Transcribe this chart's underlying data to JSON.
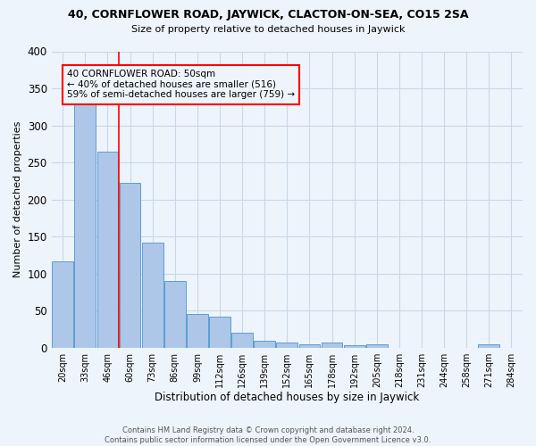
{
  "title": "40, CORNFLOWER ROAD, JAYWICK, CLACTON-ON-SEA, CO15 2SA",
  "subtitle": "Size of property relative to detached houses in Jaywick",
  "xlabel": "Distribution of detached houses by size in Jaywick",
  "ylabel": "Number of detached properties",
  "footer_line1": "Contains HM Land Registry data © Crown copyright and database right 2024.",
  "footer_line2": "Contains public sector information licensed under the Open Government Licence v3.0.",
  "bar_labels": [
    "20sqm",
    "33sqm",
    "46sqm",
    "60sqm",
    "73sqm",
    "86sqm",
    "99sqm",
    "112sqm",
    "126sqm",
    "139sqm",
    "152sqm",
    "165sqm",
    "178sqm",
    "192sqm",
    "205sqm",
    "218sqm",
    "231sqm",
    "244sqm",
    "258sqm",
    "271sqm",
    "284sqm"
  ],
  "bar_values": [
    116,
    333,
    265,
    222,
    142,
    90,
    45,
    42,
    20,
    9,
    7,
    5,
    7,
    3,
    4,
    0,
    0,
    0,
    0,
    4,
    0
  ],
  "bar_color": "#aec6e8",
  "bar_edge_color": "#5a9fd4",
  "grid_color": "#c8d8e8",
  "background_color": "#eef4fb",
  "annotation_line1": "40 CORNFLOWER ROAD: 50sqm",
  "annotation_line2": "← 40% of detached houses are smaller (516)",
  "annotation_line3": "59% of semi-detached houses are larger (759) →",
  "red_line_x": 2.5,
  "ylim": [
    0,
    400
  ],
  "yticks": [
    0,
    50,
    100,
    150,
    200,
    250,
    300,
    350,
    400
  ]
}
